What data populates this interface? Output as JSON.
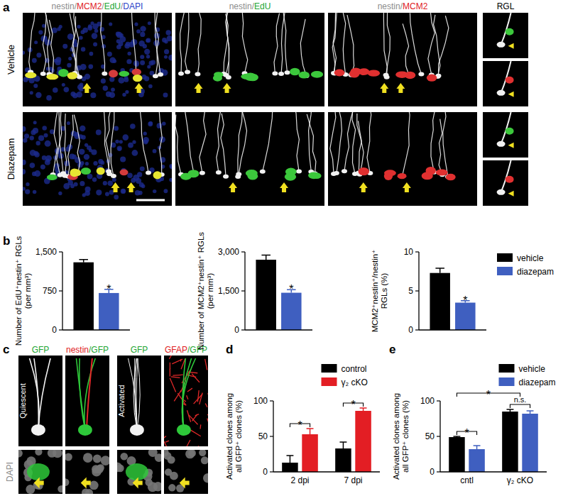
{
  "panel_labels": [
    "a",
    "b",
    "c",
    "d",
    "e"
  ],
  "panel_a": {
    "columns": [
      {
        "parts": [
          {
            "text": "nestin",
            "color": "#8c8c8c"
          },
          {
            "text": "/",
            "color": "#8c8c8c"
          },
          {
            "text": "MCM2",
            "color": "#e0201e"
          },
          {
            "text": "/",
            "color": "#8c8c8c"
          },
          {
            "text": "EdU",
            "color": "#22a532"
          },
          {
            "text": "/",
            "color": "#8c8c8c"
          },
          {
            "text": "DAPI",
            "color": "#2b3fc8"
          }
        ]
      },
      {
        "parts": [
          {
            "text": "nestin",
            "color": "#8c8c8c"
          },
          {
            "text": "/",
            "color": "#8c8c8c"
          },
          {
            "text": "EdU",
            "color": "#22a532"
          }
        ]
      },
      {
        "parts": [
          {
            "text": "nestin",
            "color": "#8c8c8c"
          },
          {
            "text": "/",
            "color": "#8c8c8c"
          },
          {
            "text": "MCM2",
            "color": "#e0201e"
          }
        ]
      },
      {
        "parts": [
          {
            "text": "RGL",
            "color": "#000000"
          }
        ]
      }
    ],
    "rows": [
      "Vehicle",
      "Diazepam"
    ]
  },
  "panel_c": {
    "columns": [
      {
        "parts": [
          {
            "text": "GFP",
            "color": "#22a532"
          }
        ]
      },
      {
        "parts": [
          {
            "text": "nestin",
            "color": "#e0201e"
          },
          {
            "text": "/",
            "color": "#22a532"
          },
          {
            "text": "GFP",
            "color": "#22a532"
          }
        ]
      },
      {
        "parts": [
          {
            "text": "GFP",
            "color": "#22a532"
          }
        ]
      },
      {
        "parts": [
          {
            "text": "GFAP",
            "color": "#e0201e"
          },
          {
            "text": "/",
            "color": "#22a532"
          },
          {
            "text": "GFP",
            "color": "#22a532"
          }
        ]
      }
    ],
    "cell_states": [
      "Quiescent",
      "Activated"
    ],
    "bottom_label": "DAPI"
  },
  "chart_data": [
    {
      "type": "bar",
      "y_label": [
        "Number of EdU⁺nestin⁺ RGLs",
        "(per mm³)"
      ],
      "categories": [
        null
      ],
      "series": [
        {
          "name": "vehicle",
          "color": "#000000",
          "values": [
            1300
          ],
          "errors": [
            55
          ]
        },
        {
          "name": "diazepam",
          "color": "#3f5fc0",
          "values": [
            710
          ],
          "errors": [
            70
          ]
        }
      ],
      "ylim": [
        0,
        1500
      ],
      "yticks": [
        0,
        750,
        {
          "value": 1500,
          "label": "1,500"
        }
      ],
      "tick_labels": "y",
      "annotations": [
        {
          "text": "*",
          "from": [
            1,
            0
          ],
          "to": [
            1,
            0
          ]
        }
      ]
    },
    {
      "type": "bar",
      "y_label": [
        "Number of MCM2⁺nestin⁺ RGLs",
        "(per mm³)"
      ],
      "categories": [
        null
      ],
      "series": [
        {
          "name": "vehicle",
          "color": "#000000",
          "values": [
            2700
          ],
          "errors": [
            180
          ]
        },
        {
          "name": "diazepam",
          "color": "#3f5fc0",
          "values": [
            1430
          ],
          "errors": [
            120
          ]
        }
      ],
      "ylim": [
        0,
        3000
      ],
      "yticks": [
        0,
        {
          "value": 1500,
          "label": "1,500"
        },
        {
          "value": 3000,
          "label": "3,000"
        }
      ],
      "tick_labels": "y",
      "annotations": [
        {
          "text": "*",
          "from": [
            1,
            0
          ],
          "to": [
            1,
            0
          ]
        }
      ]
    },
    {
      "type": "bar",
      "y_label": [
        "MCM2⁺nestin⁺/nestin⁺",
        "RGLs (%)"
      ],
      "categories": [
        null
      ],
      "series": [
        {
          "name": "vehicle",
          "color": "#000000",
          "values": [
            7.3
          ],
          "errors": [
            0.6
          ]
        },
        {
          "name": "diazepam",
          "color": "#3f5fc0",
          "values": [
            3.5
          ],
          "errors": [
            0.25
          ]
        }
      ],
      "ylim": [
        0,
        10
      ],
      "yticks": [
        0,
        5,
        10
      ],
      "tick_labels": "y",
      "legend": "right",
      "annotations": [
        {
          "text": "*",
          "from": [
            1,
            0
          ],
          "to": [
            1,
            0
          ]
        }
      ]
    },
    {
      "type": "bar",
      "y_label": [
        "Activated clones among",
        "all GFP⁺ clones (%)"
      ],
      "categories": [
        "2 dpi",
        "7 dpi"
      ],
      "series": [
        {
          "name": "control",
          "color": "#000000",
          "values": [
            13,
            33
          ],
          "errors": [
            10,
            9
          ]
        },
        {
          "name": "γ₂ cKO",
          "color": "#e31e24",
          "values": [
            53,
            86
          ],
          "errors": [
            8,
            4
          ]
        }
      ],
      "ylim": [
        0,
        100
      ],
      "yticks": [
        0,
        50,
        100
      ],
      "legend": "top",
      "annotations": [
        {
          "text": "*",
          "from": [
            0,
            0
          ],
          "to": [
            1,
            0
          ]
        },
        {
          "text": "*",
          "from": [
            0,
            1
          ],
          "to": [
            1,
            1
          ]
        }
      ]
    },
    {
      "type": "bar",
      "y_label": [
        "Activated clones among",
        "all GFP⁺ clones (%)"
      ],
      "categories": [
        "cntl",
        "γ₂ cKO"
      ],
      "series": [
        {
          "name": "vehicle",
          "color": "#000000",
          "values": [
            49,
            85
          ],
          "errors": [
            1,
            3
          ]
        },
        {
          "name": "diazepam",
          "color": "#3f5fc0",
          "values": [
            32,
            82
          ],
          "errors": [
            5,
            4
          ]
        }
      ],
      "ylim": [
        0,
        100
      ],
      "yticks": [
        0,
        50,
        100
      ],
      "legend": "top",
      "annotations": [
        {
          "text": "*",
          "from": [
            0,
            0
          ],
          "to": [
            1,
            0
          ]
        },
        {
          "text": "*",
          "from": [
            0,
            0
          ],
          "to": [
            null,
            1
          ]
        },
        {
          "text": "n.s.",
          "from": [
            0,
            1
          ],
          "to": [
            1,
            1
          ]
        }
      ]
    }
  ]
}
